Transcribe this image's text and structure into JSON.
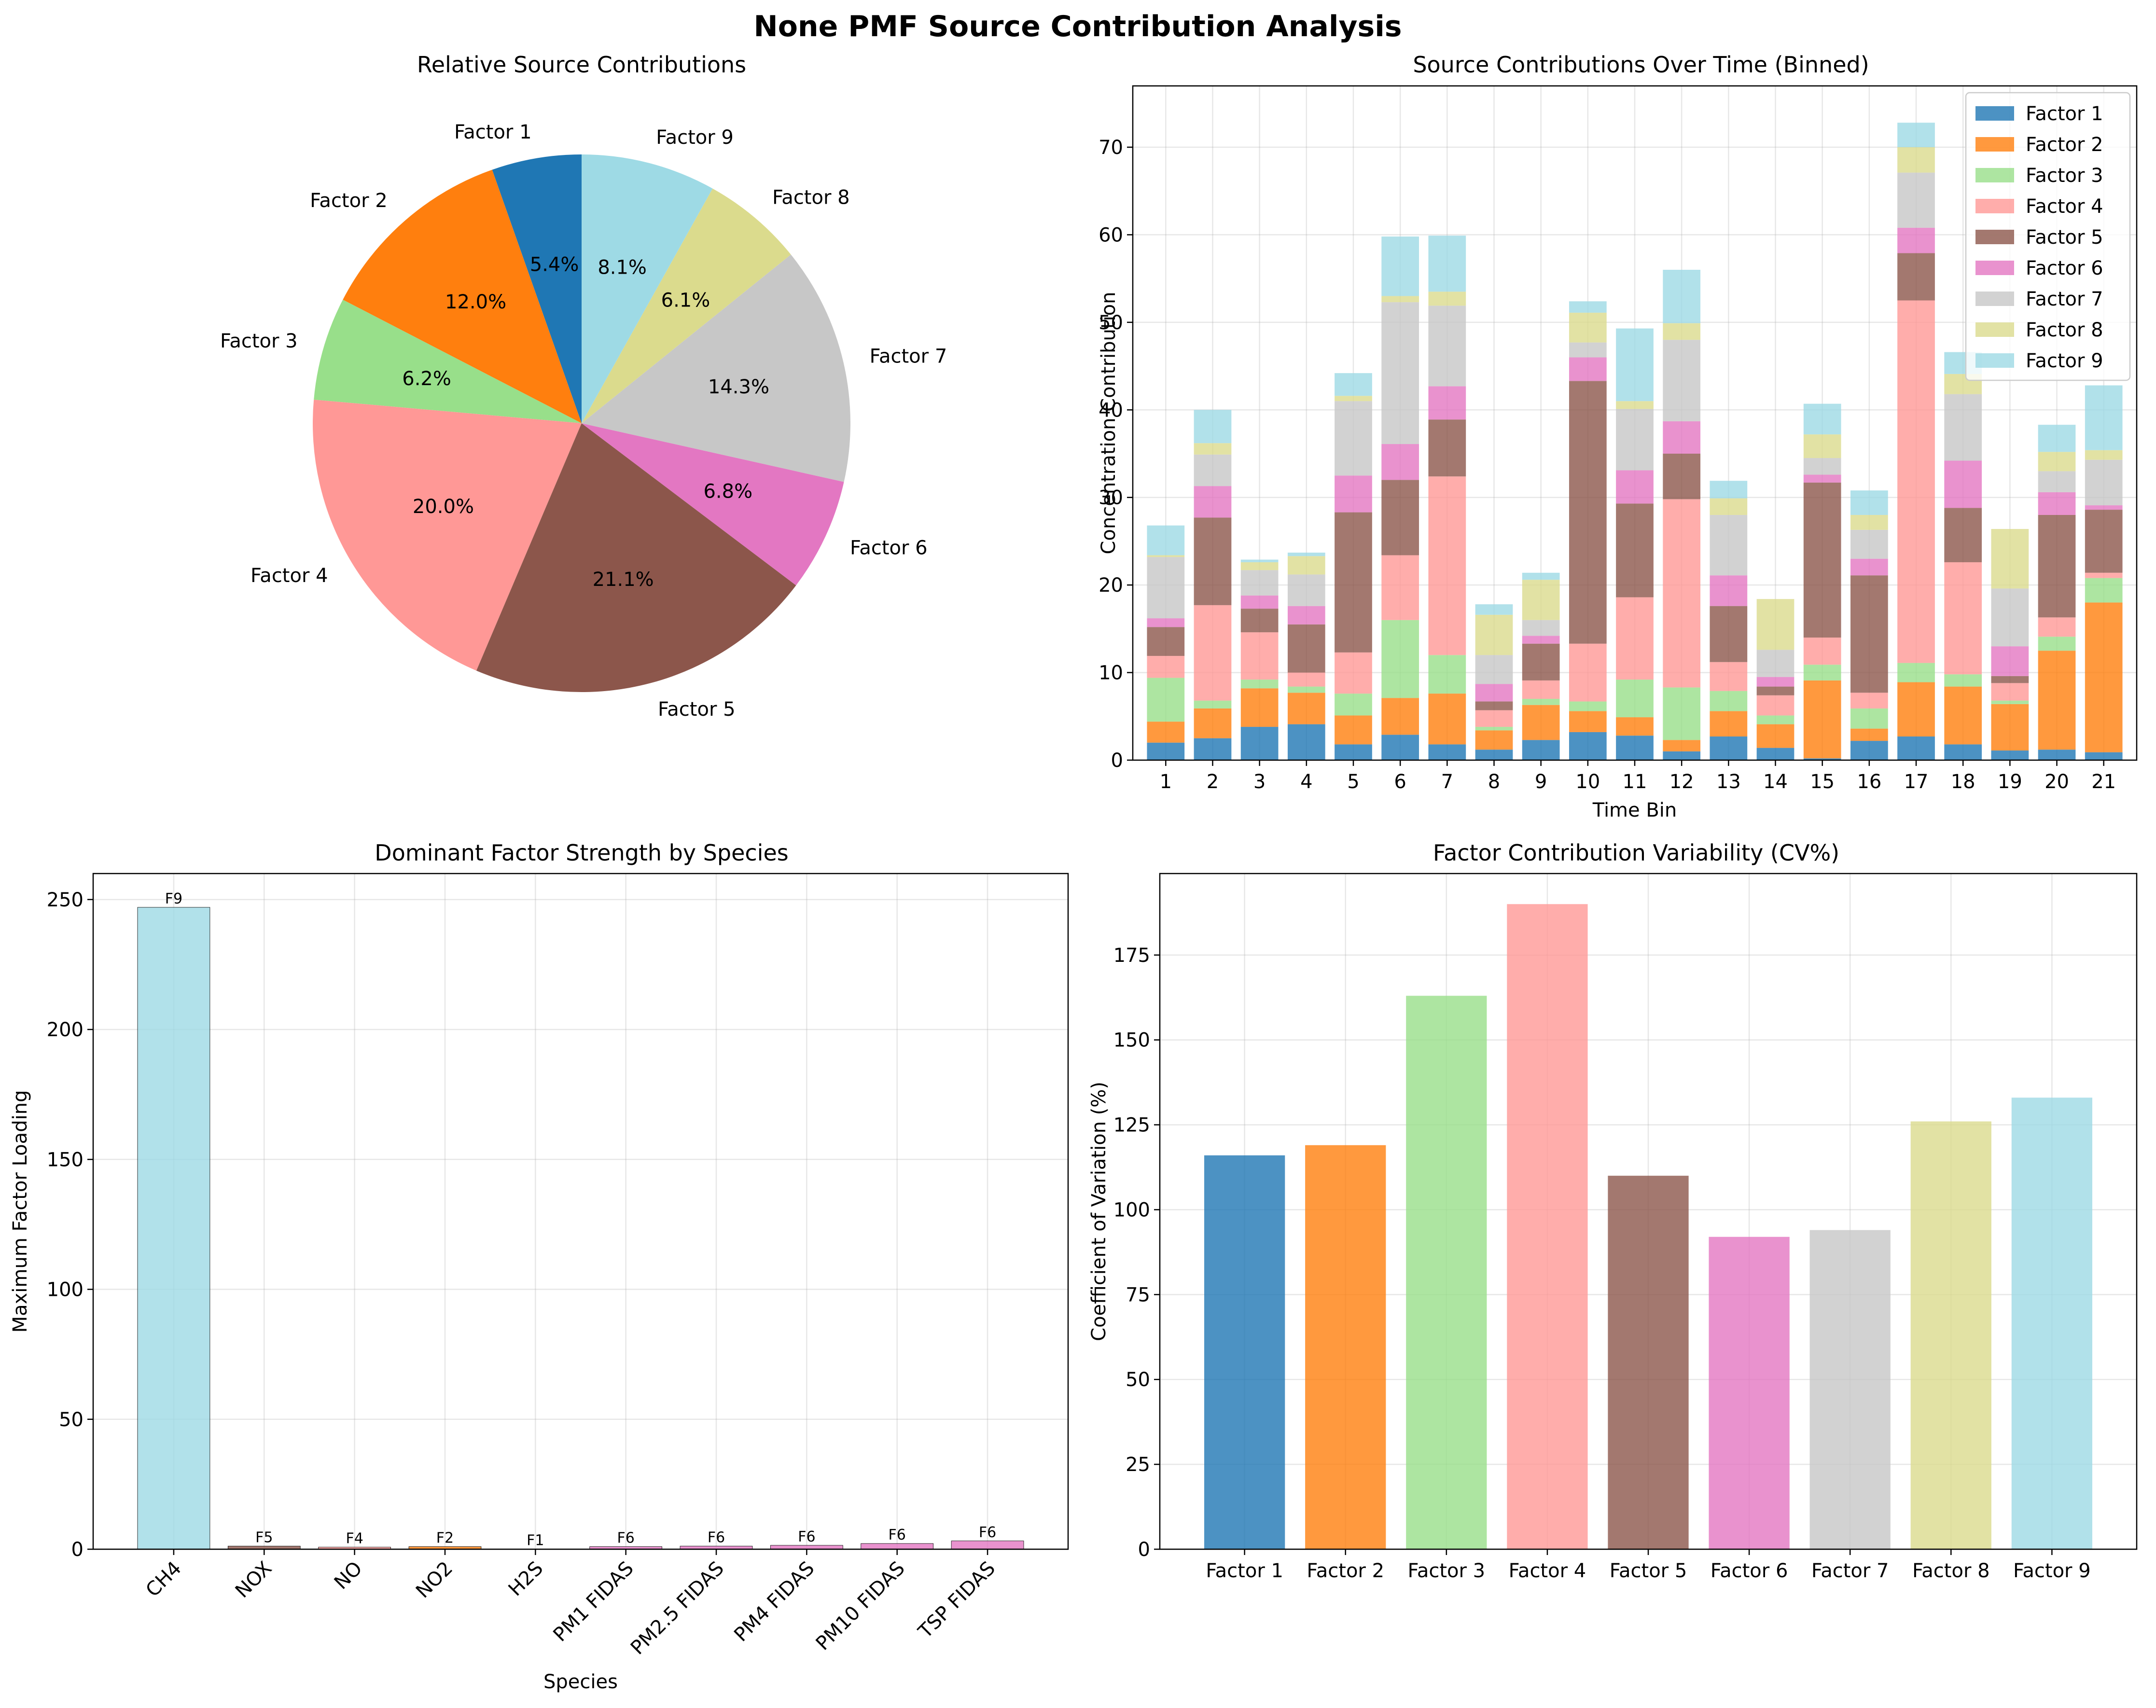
{
  "suptitle": "None PMF Source Contribution Analysis",
  "colors": [
    "#1f77b4",
    "#ff7f0e",
    "#98df8a",
    "#ff9896",
    "#8c564b",
    "#e377c2",
    "#c7c7c7",
    "#dbdb8d",
    "#9edae5"
  ],
  "chart_data": [
    {
      "type": "pie",
      "title": "Relative Source Contributions",
      "labels": [
        "Factor 1",
        "Factor 2",
        "Factor 3",
        "Factor 4",
        "Factor 5",
        "Factor 6",
        "Factor 7",
        "Factor 8",
        "Factor 9"
      ],
      "values": [
        5.4,
        12.0,
        6.2,
        20.0,
        21.1,
        6.8,
        14.3,
        6.1,
        8.1
      ],
      "pct_labels": [
        "5.4%",
        "12.0%",
        "6.2%",
        "20.0%",
        "21.1%",
        "6.8%",
        "14.3%",
        "6.1%",
        "8.1%"
      ],
      "start_angle_deg": 90,
      "direction": "counterclockwise"
    },
    {
      "type": "bar",
      "stacked": true,
      "title": "Source Contributions Over Time (Binned)",
      "xlabel": "Time Bin",
      "ylabel": "Concentration Contribution",
      "categories": [
        "1",
        "2",
        "3",
        "4",
        "5",
        "6",
        "7",
        "8",
        "9",
        "10",
        "11",
        "12",
        "13",
        "14",
        "15",
        "16",
        "17",
        "18",
        "19",
        "20",
        "21"
      ],
      "ylim": [
        0,
        77
      ],
      "yticks": [
        0,
        10,
        20,
        30,
        40,
        50,
        60,
        70
      ],
      "legend_position": "top-right",
      "grid": true,
      "series": [
        {
          "name": "Factor 1",
          "values": [
            2.0,
            2.5,
            3.8,
            4.1,
            1.8,
            2.9,
            1.8,
            1.2,
            2.3,
            3.2,
            2.8,
            1.0,
            2.7,
            1.4,
            0.2,
            2.2,
            2.7,
            1.8,
            1.1,
            1.2,
            0.9
          ]
        },
        {
          "name": "Factor 2",
          "values": [
            2.4,
            3.4,
            4.4,
            3.6,
            3.3,
            4.2,
            5.8,
            2.2,
            4.0,
            2.4,
            2.1,
            1.3,
            2.9,
            2.7,
            8.9,
            1.4,
            6.2,
            6.6,
            5.3,
            11.3,
            17.1
          ]
        },
        {
          "name": "Factor 3",
          "values": [
            5.0,
            0.9,
            1.0,
            0.7,
            2.5,
            8.9,
            4.4,
            0.4,
            0.7,
            1.1,
            4.3,
            6.0,
            2.3,
            1.0,
            1.8,
            2.3,
            2.2,
            1.4,
            0.4,
            1.6,
            2.8
          ]
        },
        {
          "name": "Factor 4",
          "values": [
            2.5,
            10.9,
            5.4,
            1.6,
            4.7,
            7.4,
            20.4,
            1.9,
            2.1,
            6.6,
            9.4,
            21.5,
            3.3,
            2.3,
            3.1,
            1.8,
            41.4,
            12.8,
            2.0,
            2.2,
            0.6
          ]
        },
        {
          "name": "Factor 5",
          "values": [
            3.3,
            10.0,
            2.7,
            5.5,
            16.0,
            8.6,
            6.5,
            1.0,
            4.2,
            30.0,
            10.7,
            5.2,
            6.4,
            1.0,
            17.7,
            13.4,
            5.4,
            6.2,
            0.8,
            11.7,
            7.2
          ]
        },
        {
          "name": "Factor 6",
          "values": [
            1.0,
            3.6,
            1.5,
            2.1,
            4.2,
            4.1,
            3.8,
            2.0,
            0.9,
            2.7,
            3.8,
            3.7,
            3.5,
            1.1,
            0.9,
            1.9,
            2.9,
            5.4,
            3.4,
            2.6,
            0.5
          ]
        },
        {
          "name": "Factor 7",
          "values": [
            7.0,
            3.6,
            2.9,
            3.6,
            8.5,
            16.2,
            9.2,
            3.3,
            1.8,
            1.7,
            7.0,
            9.3,
            6.9,
            3.1,
            1.9,
            3.3,
            6.3,
            7.6,
            6.6,
            2.4,
            5.2
          ]
        },
        {
          "name": "Factor 8",
          "values": [
            0.2,
            1.3,
            0.9,
            2.1,
            0.6,
            0.7,
            1.6,
            4.6,
            4.6,
            3.4,
            0.9,
            1.9,
            1.9,
            5.8,
            2.7,
            1.7,
            2.9,
            2.3,
            6.8,
            2.2,
            1.1
          ]
        },
        {
          "name": "Factor 9",
          "values": [
            3.4,
            3.8,
            0.3,
            0.4,
            2.6,
            6.8,
            6.4,
            1.2,
            0.8,
            1.3,
            8.3,
            6.1,
            2.0,
            0.0,
            3.5,
            2.8,
            2.8,
            2.5,
            0.0,
            3.1,
            7.4
          ]
        }
      ]
    },
    {
      "type": "bar",
      "title": "Dominant Factor Strength by Species",
      "xlabel": "Species",
      "ylabel": "Maximum Factor Loading",
      "categories": [
        "CH4",
        "NOX",
        "NO",
        "NO2",
        "H2S",
        "PM1 FIDAS",
        "PM2.5 FIDAS",
        "PM4 FIDAS",
        "PM10 FIDAS",
        "TSP FIDAS"
      ],
      "values": [
        247,
        1.2,
        0.8,
        1.0,
        0.1,
        1.0,
        1.2,
        1.5,
        2.2,
        3.2
      ],
      "bar_labels": [
        "F9",
        "F5",
        "F4",
        "F2",
        "F1",
        "F6",
        "F6",
        "F6",
        "F6",
        "F6"
      ],
      "bar_factor_index": [
        8,
        4,
        3,
        1,
        0,
        5,
        5,
        5,
        5,
        5
      ],
      "ylim": [
        0,
        260
      ],
      "yticks": [
        0,
        50,
        100,
        150,
        200,
        250
      ],
      "grid": true
    },
    {
      "type": "bar",
      "title": "Factor Contribution Variability (CV%)",
      "ylabel": "Coefficient of Variation (%)",
      "xlabel": "",
      "categories": [
        "Factor 1",
        "Factor 2",
        "Factor 3",
        "Factor 4",
        "Factor 5",
        "Factor 6",
        "Factor 7",
        "Factor 8",
        "Factor 9"
      ],
      "values": [
        116,
        119,
        163,
        190,
        110,
        92,
        94,
        126,
        133
      ],
      "ylim": [
        0,
        199
      ],
      "yticks": [
        0,
        25,
        50,
        75,
        100,
        125,
        150,
        175
      ],
      "grid": true
    }
  ]
}
